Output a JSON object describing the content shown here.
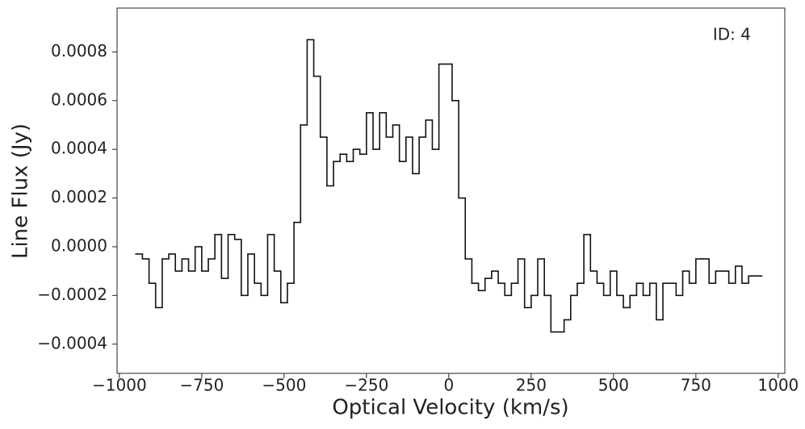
{
  "chart_data": {
    "type": "line",
    "annotation": "ID: 4",
    "x_label": "Optical Velocity (km/s)",
    "y_label": "Line Flux (Jy)",
    "color": "#111111",
    "drawstyle": "steps-mid",
    "xlim": [
      -1007,
      1020
    ],
    "ylim": [
      -0.00052,
      0.00098
    ],
    "xticks": [
      {
        "value": -1000,
        "label": "−1000"
      },
      {
        "value": -750,
        "label": "−750"
      },
      {
        "value": -500,
        "label": "−500"
      },
      {
        "value": -250,
        "label": "−250"
      },
      0,
      250,
      500,
      750,
      1000
    ],
    "yticks": [
      {
        "value": -0.0004,
        "label": "−0.0004"
      },
      {
        "value": -0.0002,
        "label": "−0.0002"
      },
      {
        "value": 0,
        "label": "0.0000"
      },
      0.0002,
      0.0004,
      0.0006,
      0.0008
    ],
    "x": [
      -940,
      -920,
      -900,
      -880,
      -860,
      -840,
      -820,
      -800,
      -780,
      -760,
      -740,
      -720,
      -700,
      -680,
      -660,
      -640,
      -620,
      -600,
      -580,
      -560,
      -540,
      -520,
      -500,
      -480,
      -460,
      -440,
      -420,
      -400,
      -380,
      -360,
      -340,
      -320,
      -300,
      -280,
      -260,
      -240,
      -220,
      -200,
      -180,
      -160,
      -140,
      -120,
      -100,
      -80,
      -60,
      -40,
      -20,
      0,
      20,
      40,
      60,
      80,
      100,
      120,
      140,
      160,
      180,
      200,
      220,
      240,
      260,
      280,
      300,
      320,
      340,
      360,
      380,
      400,
      420,
      440,
      460,
      480,
      500,
      520,
      540,
      560,
      580,
      600,
      620,
      640,
      660,
      680,
      700,
      720,
      740,
      760,
      780,
      800,
      820,
      840,
      860,
      880,
      900,
      920,
      940
    ],
    "values": [
      -3e-05,
      -5e-05,
      -0.00015,
      -0.00025,
      -5e-05,
      -3e-05,
      -0.0001,
      -5e-05,
      -0.0001,
      0.0,
      -0.0001,
      -5e-05,
      5e-05,
      -0.00013,
      5e-05,
      3e-05,
      -0.0002,
      -3e-05,
      -0.00015,
      -0.0002,
      5e-05,
      -0.0001,
      -0.00023,
      -0.00015,
      0.0001,
      0.0005,
      0.00085,
      0.0007,
      0.00045,
      0.00025,
      0.00035,
      0.00038,
      0.00035,
      0.0004,
      0.00038,
      0.00055,
      0.0004,
      0.00055,
      0.00045,
      0.0005,
      0.00035,
      0.00045,
      0.0003,
      0.00045,
      0.00052,
      0.0004,
      0.00075,
      0.00075,
      0.0006,
      0.0002,
      -5e-05,
      -0.00015,
      -0.00018,
      -0.00013,
      -0.0001,
      -0.00015,
      -0.0002,
      -0.00015,
      -5e-05,
      -0.00025,
      -0.0002,
      -5e-05,
      -0.0002,
      -0.00035,
      -0.00035,
      -0.0003,
      -0.0002,
      -0.00015,
      5e-05,
      -0.0001,
      -0.00015,
      -0.0002,
      -0.0001,
      -0.0002,
      -0.00025,
      -0.0002,
      -0.00015,
      -0.0002,
      -0.00015,
      -0.0003,
      -0.00015,
      -0.00015,
      -0.0002,
      -0.0001,
      -0.00015,
      -5e-05,
      -5e-05,
      -0.00015,
      -0.0001,
      -0.0001,
      -0.00015,
      -8e-05,
      -0.00015,
      -0.00012,
      -0.00012
    ]
  }
}
